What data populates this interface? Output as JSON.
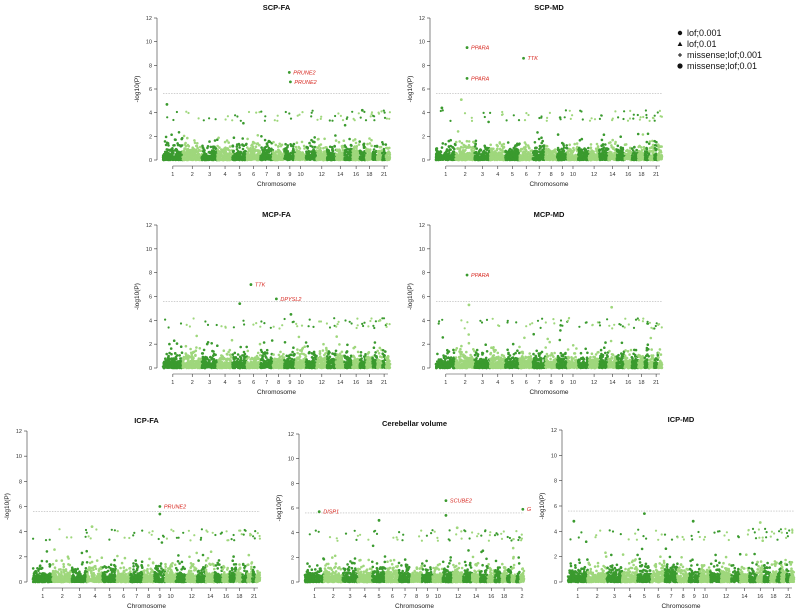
{
  "colors": {
    "dark_green": "#3a9a2e",
    "light_green": "#9fd77c",
    "highlight": "#d7261e",
    "threshold": "#b5b5b5",
    "axis": "#333333"
  },
  "legend": {
    "items": [
      {
        "label": "lof;0.001",
        "symbol": "circle"
      },
      {
        "label": "lof;0.01",
        "symbol": "triangle"
      },
      {
        "label": "missense;lof;0.001",
        "symbol": "plus"
      },
      {
        "label": "missense;lof;0.01",
        "symbol": "dot"
      }
    ]
  },
  "chart_data": [
    {
      "type": "scatter",
      "title": "SCP-FA",
      "xlabel": "Chromosome",
      "ylabel": "-log10(P)",
      "ylim": [
        0,
        12
      ],
      "yticks": [
        0,
        2,
        4,
        6,
        8,
        10,
        12
      ],
      "xticks": [
        "1",
        "2",
        "3",
        "4",
        "5",
        "6",
        "7",
        "8",
        "9",
        "10",
        "12",
        "14",
        "16",
        "18",
        "21"
      ],
      "threshold": 5.6,
      "hits": [
        {
          "gene": "PRUNE2",
          "chrom": 9,
          "frac": 0.45,
          "y": 7.4
        },
        {
          "gene": "PRUNE2",
          "chrom": 9,
          "frac": 0.55,
          "y": 6.6
        }
      ],
      "peaks": [
        {
          "chrom": 1,
          "frac": 0.2,
          "y": 4.7
        },
        {
          "chrom": 17,
          "frac": 0.4,
          "y": 4.2
        }
      ]
    },
    {
      "type": "scatter",
      "title": "SCP-MD",
      "xlabel": "Chromosome",
      "ylabel": "-log10(P)",
      "ylim": [
        0,
        12
      ],
      "yticks": [
        0,
        2,
        4,
        6,
        8,
        10,
        12
      ],
      "xticks": [
        "1",
        "2",
        "3",
        "4",
        "5",
        "6",
        "7",
        "8",
        "9",
        "10",
        "12",
        "14",
        "16",
        "18",
        "21"
      ],
      "threshold": 5.6,
      "hits": [
        {
          "gene": "PPARA",
          "chrom": 2,
          "frac": 0.6,
          "y": 9.5
        },
        {
          "gene": "PPARA",
          "chrom": 2,
          "frac": 0.6,
          "y": 6.9
        },
        {
          "gene": "TTK",
          "chrom": 6,
          "frac": 0.3,
          "y": 8.6
        }
      ],
      "peaks": [
        {
          "chrom": 2,
          "frac": 0.3,
          "y": 5.1
        },
        {
          "chrom": 1,
          "frac": 0.3,
          "y": 4.4
        }
      ]
    },
    {
      "type": "scatter",
      "title": "MCP-FA",
      "xlabel": "Chromosome",
      "ylabel": "-log10(P)",
      "ylim": [
        0,
        12
      ],
      "yticks": [
        0,
        2,
        4,
        6,
        8,
        10,
        12
      ],
      "xticks": [
        "1",
        "2",
        "3",
        "4",
        "5",
        "6",
        "7",
        "8",
        "9",
        "10",
        "12",
        "14",
        "16",
        "18",
        "21"
      ],
      "threshold": 5.6,
      "hits": [
        {
          "gene": "TTK",
          "chrom": 6,
          "frac": 0.3,
          "y": 7.0
        },
        {
          "gene": "DPYSL2",
          "chrom": 8,
          "frac": 0.3,
          "y": 5.8
        }
      ],
      "peaks": [
        {
          "chrom": 5,
          "frac": 0.5,
          "y": 5.4
        },
        {
          "chrom": 9,
          "frac": 0.6,
          "y": 4.5
        }
      ]
    },
    {
      "type": "scatter",
      "title": "MCP-MD",
      "xlabel": "Chromosome",
      "ylabel": "-log10(P)",
      "ylim": [
        0,
        12
      ],
      "yticks": [
        0,
        2,
        4,
        6,
        8,
        10,
        12
      ],
      "xticks": [
        "1",
        "2",
        "3",
        "4",
        "5",
        "6",
        "7",
        "8",
        "9",
        "10",
        "12",
        "14",
        "16",
        "18",
        "21"
      ],
      "threshold": 5.6,
      "hits": [
        {
          "gene": "PPARA",
          "chrom": 2,
          "frac": 0.6,
          "y": 7.8
        }
      ],
      "peaks": [
        {
          "chrom": 2,
          "frac": 0.7,
          "y": 5.3
        },
        {
          "chrom": 14,
          "frac": 0.4,
          "y": 5.1
        }
      ]
    },
    {
      "type": "scatter",
      "title": "ICP-FA",
      "xlabel": "Chromosome",
      "ylabel": "-log10(P)",
      "ylim": [
        0,
        12
      ],
      "yticks": [
        0,
        2,
        4,
        6,
        8,
        10,
        12
      ],
      "xticks": [
        "1",
        "2",
        "3",
        "4",
        "5",
        "6",
        "7",
        "8",
        "9",
        "10",
        "12",
        "14",
        "16",
        "18",
        "21"
      ],
      "threshold": 5.6,
      "hits": [
        {
          "gene": "PRUNE2",
          "chrom": 9,
          "frac": 0.5,
          "y": 6.0
        }
      ],
      "peaks": [
        {
          "chrom": 9,
          "frac": 0.5,
          "y": 5.4
        },
        {
          "chrom": 4,
          "frac": 0.3,
          "y": 4.4
        }
      ]
    },
    {
      "type": "scatter",
      "title": "Cerebellar volume",
      "xlabel": "Chromosome",
      "ylabel": "-log10(P)",
      "ylim": [
        0,
        12
      ],
      "yticks": [
        0,
        2,
        4,
        6,
        8,
        10,
        12
      ],
      "xticks": [
        "1",
        "2",
        "3",
        "4",
        "5",
        "6",
        "7",
        "8",
        "9",
        "10",
        "12",
        "14",
        "16",
        "18",
        "2"
      ],
      "threshold": 5.6,
      "hits": [
        {
          "gene": "DISP1",
          "chrom": 1,
          "frac": 0.75,
          "y": 5.7
        },
        {
          "gene": "SCUBE2",
          "chrom": 11,
          "frac": 0.3,
          "y": 6.6
        },
        {
          "gene": "G",
          "chrom": 22,
          "frac": 0.7,
          "y": 5.9
        }
      ],
      "peaks": [
        {
          "chrom": 11,
          "frac": 0.3,
          "y": 5.4
        },
        {
          "chrom": 5,
          "frac": 0.5,
          "y": 5.0
        },
        {
          "chrom": 12,
          "frac": 0.4,
          "y": 4.4
        }
      ]
    },
    {
      "type": "scatter",
      "title": "ICP-MD",
      "xlabel": "Chromosome",
      "ylabel": "-log10(P)",
      "ylim": [
        0,
        12
      ],
      "yticks": [
        0,
        2,
        4,
        6,
        8,
        10,
        12
      ],
      "xticks": [
        "1",
        "2",
        "3",
        "4",
        "5",
        "6",
        "7",
        "8",
        "9",
        "10",
        "12",
        "14",
        "16",
        "18",
        "21"
      ],
      "threshold": 5.6,
      "hits": [],
      "peaks": [
        {
          "chrom": 5,
          "frac": 0.5,
          "y": 5.4
        },
        {
          "chrom": 1,
          "frac": 0.3,
          "y": 4.8
        },
        {
          "chrom": 9,
          "frac": 0.4,
          "y": 4.8
        },
        {
          "chrom": 16,
          "frac": 0.5,
          "y": 4.7
        }
      ]
    }
  ]
}
